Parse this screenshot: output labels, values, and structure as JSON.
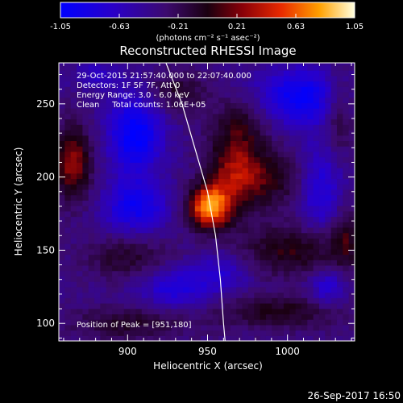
{
  "chart_data": {
    "type": "heatmap",
    "title": "Reconstructed RHESSI Image",
    "xlabel": "Heliocentric X (arcsec)",
    "ylabel": "Heliocentric Y (arcsec)",
    "xlim": [
      857,
      1042
    ],
    "ylim": [
      88,
      278
    ],
    "xticks": [
      900,
      950,
      1000
    ],
    "yticks": [
      100,
      150,
      200,
      250
    ],
    "colorbar": {
      "range": [
        -1.05,
        1.05
      ],
      "ticks": [
        "-1.05",
        "-0.63",
        "-0.21",
        "0.21",
        "0.63",
        "1.05"
      ],
      "units": "(photons cm⁻² s⁻¹ asec⁻²)"
    },
    "annotations": [
      "29-Oct-2015 21:57:40.000 to 22:07:40.000",
      "Detectors: 1F 5F 7F, Att 0",
      "Energy Range: 3.0 - 6.0 keV",
      "Clean     Total counts: 1.06E+05"
    ],
    "peak_label": "Position of Peak = [951,180]",
    "peak": [
      951,
      180
    ],
    "footer": "26-Sep-2017 16:50",
    "sources": [
      {
        "x": 951,
        "y": 180,
        "amp": 1.05,
        "sx": 9,
        "sy": 10
      },
      {
        "x": 967,
        "y": 205,
        "amp": 0.55,
        "sx": 12,
        "sy": 20
      },
      {
        "x": 992,
        "y": 200,
        "amp": 0.35,
        "sx": 18,
        "sy": 14
      },
      {
        "x": 972,
        "y": 238,
        "amp": 0.25,
        "sx": 12,
        "sy": 12
      },
      {
        "x": 930,
        "y": 258,
        "amp": 0.3,
        "sx": 14,
        "sy": 10
      },
      {
        "x": 866,
        "y": 210,
        "amp": 0.6,
        "sx": 8,
        "sy": 18
      },
      {
        "x": 900,
        "y": 145,
        "amp": 0.3,
        "sx": 18,
        "sy": 10
      },
      {
        "x": 1005,
        "y": 150,
        "amp": 0.4,
        "sx": 25,
        "sy": 12
      },
      {
        "x": 995,
        "y": 108,
        "amp": 0.35,
        "sx": 28,
        "sy": 8
      },
      {
        "x": 900,
        "y": 100,
        "amp": 0.3,
        "sx": 25,
        "sy": 8
      },
      {
        "x": 1032,
        "y": 245,
        "amp": 0.35,
        "sx": 8,
        "sy": 20
      },
      {
        "x": 1036,
        "y": 160,
        "amp": 0.3,
        "sx": 6,
        "sy": 15
      },
      {
        "x": 905,
        "y": 230,
        "amp": -0.65,
        "sx": 12,
        "sy": 20
      },
      {
        "x": 1010,
        "y": 255,
        "amp": -0.6,
        "sx": 20,
        "sy": 14
      },
      {
        "x": 905,
        "y": 180,
        "amp": -0.5,
        "sx": 14,
        "sy": 12
      },
      {
        "x": 1020,
        "y": 195,
        "amp": -0.45,
        "sx": 10,
        "sy": 22
      },
      {
        "x": 930,
        "y": 125,
        "amp": -0.4,
        "sx": 15,
        "sy": 10
      },
      {
        "x": 960,
        "y": 135,
        "amp": -0.3,
        "sx": 12,
        "sy": 10
      },
      {
        "x": 1025,
        "y": 125,
        "amp": -0.35,
        "sx": 8,
        "sy": 10
      },
      {
        "x": 880,
        "y": 270,
        "amp": -0.25,
        "sx": 10,
        "sy": 6
      }
    ],
    "limb": [
      [
        924,
        278
      ],
      [
        934,
        250
      ],
      [
        942,
        220
      ],
      [
        950,
        190
      ],
      [
        955,
        160
      ],
      [
        958,
        130
      ],
      [
        960,
        100
      ],
      [
        961,
        88
      ]
    ]
  }
}
